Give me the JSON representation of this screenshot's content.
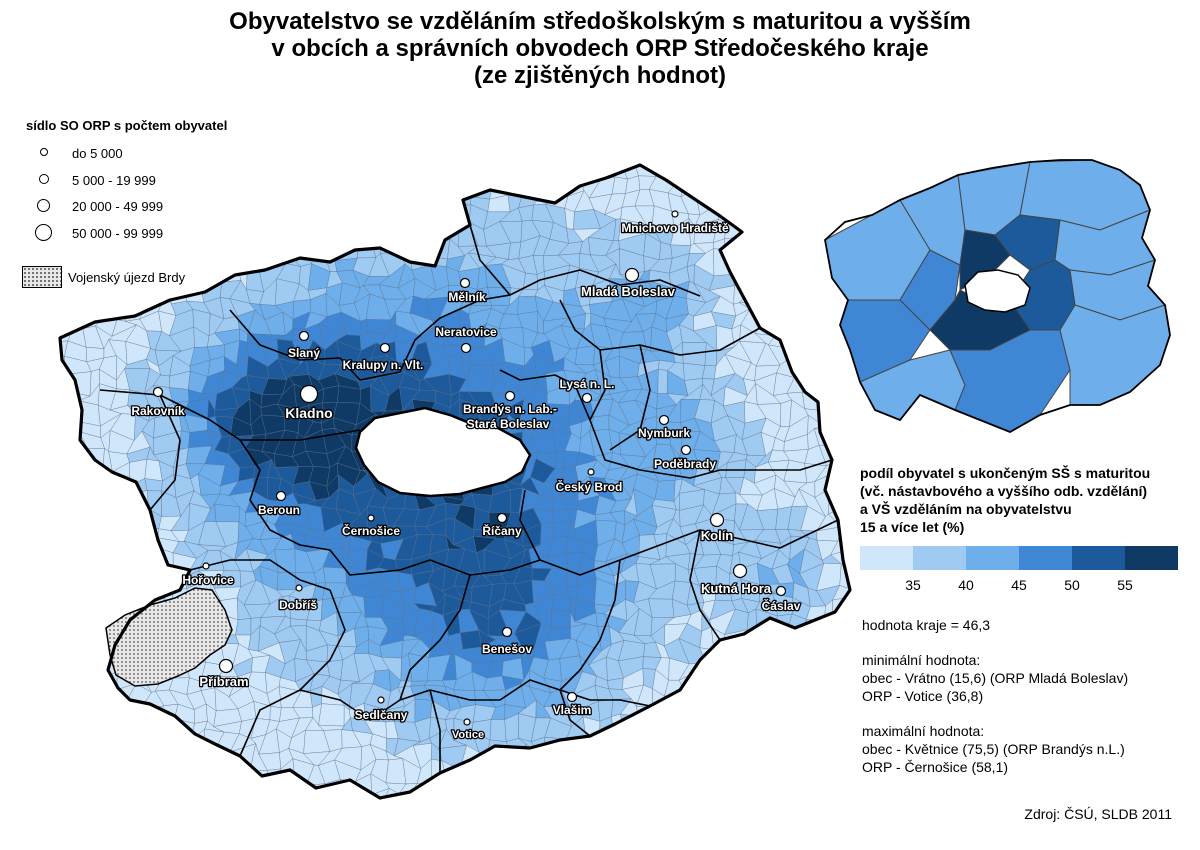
{
  "title": {
    "line1": "Obyvatelstvo se vzděláním středoškolským s maturitou a vyšším",
    "line2": "v obcích a správních obvodech ORP Středočeského kraje",
    "line3": "(ze zjištěných hodnot)"
  },
  "symbol_legend": {
    "title": "sídlo SO ORP s počtem obyvatel",
    "items": [
      {
        "label": "do 5 000"
      },
      {
        "label": "5 000 - 19 999"
      },
      {
        "label": "20 000 - 49 999"
      },
      {
        "label": "50 000 - 99 999"
      }
    ],
    "brdy_label": "Vojenský újezd Brdy"
  },
  "scale_legend": {
    "title_line1": "podíl obyvatel s ukončeným SŠ s maturitou",
    "title_line2": "(vč. nástavbového a vyššího odb. vzdělání)",
    "title_line3": "a VŠ vzděláním na obyvatelstvu",
    "title_line4": "15 a více let (%)",
    "colors": [
      "#cfe6fb",
      "#9fcaf2",
      "#6eaeea",
      "#3f87d4",
      "#1d5a9c",
      "#0f3a66"
    ],
    "ticks": [
      "35",
      "40",
      "45",
      "50",
      "55"
    ]
  },
  "stats": {
    "region_value": "hodnota kraje = 46,3",
    "min_title": "minimální hodnota:",
    "min_obec": "obec - Vrátno (15,6) (ORP Mladá Boleslav)",
    "min_orp": "ORP - Votice (36,8)",
    "max_title": "maximální hodnota:",
    "max_obec": "obec - Květnice (75,5) (ORP Brandýs n.L.)",
    "max_orp": "ORP - Černošice (58,1)"
  },
  "source": "Zdroj: ČSÚ, SLDB 2011",
  "cities": [
    {
      "name": "Mnichovo Hradiště",
      "size_class": 1
    },
    {
      "name": "Mladá Boleslav",
      "size_class": 3
    },
    {
      "name": "Mělník",
      "size_class": 2
    },
    {
      "name": "Neratovice",
      "size_class": 2
    },
    {
      "name": "Slaný",
      "size_class": 2
    },
    {
      "name": "Kralupy n. Vlt.",
      "size_class": 2
    },
    {
      "name": "Kladno",
      "size_class": 4
    },
    {
      "name": "Rakovník",
      "size_class": 2
    },
    {
      "name": "Lysá n. L.",
      "size_class": 2
    },
    {
      "name": "Brandýs n. Lab.-",
      "size_class": 2
    },
    {
      "name": "Stará Boleslav",
      "size_class": 0
    },
    {
      "name": "Nymburk",
      "size_class": 2
    },
    {
      "name": "Poděbrady",
      "size_class": 2
    },
    {
      "name": "Český Brod",
      "size_class": 1
    },
    {
      "name": "Beroun",
      "size_class": 2
    },
    {
      "name": "Černošice",
      "size_class": 1
    },
    {
      "name": "Říčany",
      "size_class": 2
    },
    {
      "name": "Kolín",
      "size_class": 3
    },
    {
      "name": "Kutná Hora",
      "size_class": 3
    },
    {
      "name": "Čáslav",
      "size_class": 2
    },
    {
      "name": "Hořovice",
      "size_class": 1
    },
    {
      "name": "Dobříš",
      "size_class": 1
    },
    {
      "name": "Benešov",
      "size_class": 2
    },
    {
      "name": "Příbram",
      "size_class": 3
    },
    {
      "name": "Sedlčany",
      "size_class": 1
    },
    {
      "name": "Votice",
      "size_class": 1
    },
    {
      "name": "Vlašim",
      "size_class": 2
    }
  ]
}
